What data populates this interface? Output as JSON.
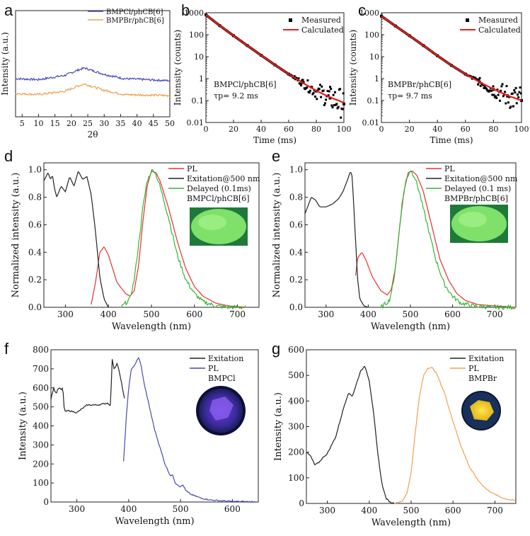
{
  "figure": {
    "panels": [
      {
        "id": "a",
        "label": "a"
      },
      {
        "id": "b",
        "label": "b"
      },
      {
        "id": "c",
        "label": "c"
      },
      {
        "id": "d",
        "label": "d"
      },
      {
        "id": "e",
        "label": "e"
      },
      {
        "id": "f",
        "label": "f"
      },
      {
        "id": "g",
        "label": "g"
      }
    ]
  },
  "chart_data": [
    {
      "id": "a",
      "type": "line",
      "xlabel": "2θ",
      "ylabel": "Intensity (a.u.)",
      "xlim": [
        3,
        50
      ],
      "ylim": [
        0,
        1
      ],
      "xticks": [
        5,
        10,
        15,
        20,
        25,
        30,
        35,
        40,
        45,
        50
      ],
      "yticks": [],
      "legend": "top-right",
      "series": [
        {
          "name": "BMPCl/phCB[6]",
          "color": "#4a4ab4",
          "x": [
            3,
            10,
            18,
            22,
            24,
            26,
            30,
            36,
            50
          ],
          "y": [
            0.36,
            0.35,
            0.39,
            0.44,
            0.46,
            0.44,
            0.4,
            0.36,
            0.34
          ]
        },
        {
          "name": "BMPBr/phCB[6]",
          "color": "#f0a050",
          "x": [
            3,
            10,
            18,
            22,
            24,
            26,
            30,
            36,
            50
          ],
          "y": [
            0.22,
            0.21,
            0.24,
            0.29,
            0.31,
            0.29,
            0.25,
            0.21,
            0.2
          ]
        }
      ]
    },
    {
      "id": "b",
      "type": "scatter",
      "xlabel": "Time (ms)",
      "ylabel": "Intensity (counts)",
      "xlim": [
        0,
        100
      ],
      "ylim": [
        0.01,
        1000
      ],
      "yscale": "log",
      "xticks": [
        0,
        20,
        40,
        60,
        80,
        100
      ],
      "yticks": [
        "0.01",
        "0.1",
        "1",
        "10",
        "100",
        "1000"
      ],
      "legend": "top-right",
      "annotations": [
        "BMPCl/phCB[6]",
        "τp= 9.2 ms"
      ],
      "series": [
        {
          "name": "Measured",
          "color": "#000000",
          "x": [
            0,
            10,
            20,
            30,
            40,
            50,
            60,
            70,
            80,
            90,
            100
          ],
          "y": [
            800,
            260,
            90,
            32,
            11.5,
            4.2,
            1.6,
            0.65,
            0.27,
            0.13,
            0.07
          ]
        },
        {
          "name": "Calculated",
          "color": "#e81c1c",
          "x": [
            0,
            10,
            20,
            30,
            40,
            50,
            60,
            70,
            80,
            90,
            100
          ],
          "y": [
            800,
            260,
            90,
            32,
            11.5,
            4.2,
            1.6,
            0.65,
            0.28,
            0.14,
            0.08
          ]
        }
      ]
    },
    {
      "id": "c",
      "type": "scatter",
      "xlabel": "Time (ms)",
      "ylabel": "Intensity (counts)",
      "xlim": [
        0,
        100
      ],
      "ylim": [
        0.01,
        1000
      ],
      "yscale": "log",
      "xticks": [
        0,
        20,
        40,
        60,
        80,
        100
      ],
      "yticks": [
        "0.01",
        "0.1",
        "1",
        "10",
        "100",
        "1000"
      ],
      "legend": "top-right",
      "annotations": [
        "BMPBr/phCB[6]",
        "τp= 9.7 ms"
      ],
      "series": [
        {
          "name": "Measured",
          "color": "#000000",
          "x": [
            0,
            10,
            20,
            30,
            40,
            50,
            60,
            70,
            80,
            90,
            100
          ],
          "y": [
            700,
            250,
            90,
            32,
            11,
            4,
            1.6,
            0.7,
            0.32,
            0.16,
            0.1
          ]
        },
        {
          "name": "Calculated",
          "color": "#e81c1c",
          "x": [
            0,
            10,
            20,
            30,
            40,
            50,
            60,
            70,
            80,
            90,
            100
          ],
          "y": [
            700,
            250,
            90,
            32,
            11,
            4,
            1.6,
            0.7,
            0.33,
            0.17,
            0.1
          ]
        }
      ]
    },
    {
      "id": "d",
      "type": "line",
      "xlabel": "Wavelength (nm)",
      "ylabel": "Normalized intensity (a.u.)",
      "xlim": [
        250,
        750
      ],
      "ylim": [
        0,
        1.05
      ],
      "xticks": [
        300,
        400,
        500,
        600,
        700
      ],
      "yticks": [
        "0.0",
        "0.2",
        "0.4",
        "0.6",
        "0.8",
        "1.0"
      ],
      "legend": "top-right",
      "annotations": [
        "BMPCl/phCB[6]"
      ],
      "series": [
        {
          "name": "PL",
          "color": "#e83030",
          "x": [
            360,
            370,
            380,
            390,
            400,
            420,
            440,
            450,
            460,
            470,
            480,
            490,
            500,
            510,
            520,
            540,
            560,
            580,
            600,
            620,
            650,
            680,
            720
          ],
          "y": [
            0.02,
            0.18,
            0.4,
            0.44,
            0.38,
            0.18,
            0.1,
            0.08,
            0.12,
            0.3,
            0.62,
            0.88,
            0.99,
            0.98,
            0.92,
            0.72,
            0.48,
            0.28,
            0.15,
            0.08,
            0.03,
            0.01,
            0.0
          ]
        },
        {
          "name": "Exitation@500 nm",
          "color": "#222222",
          "x": [
            250,
            260,
            265,
            270,
            275,
            280,
            290,
            300,
            310,
            320,
            330,
            340,
            350,
            360,
            370,
            380,
            390,
            400
          ],
          "y": [
            0.92,
            0.98,
            0.93,
            0.96,
            0.86,
            0.8,
            0.88,
            0.84,
            0.95,
            0.88,
            0.99,
            0.93,
            0.95,
            0.82,
            0.55,
            0.22,
            0.06,
            0.0
          ]
        },
        {
          "name": "Delayed (0.1ms)",
          "color": "#33b533",
          "x": [
            430,
            450,
            460,
            470,
            480,
            490,
            500,
            505,
            510,
            520,
            540,
            560,
            580,
            600,
            620,
            650,
            680,
            720
          ],
          "y": [
            0.0,
            0.06,
            0.2,
            0.45,
            0.72,
            0.92,
            0.99,
            1.0,
            0.97,
            0.88,
            0.65,
            0.38,
            0.2,
            0.1,
            0.04,
            0.01,
            0.0,
            0.0
          ]
        }
      ]
    },
    {
      "id": "e",
      "type": "line",
      "xlabel": "Wavelength (nm)",
      "ylabel": "Normalized intensity (a.u.)",
      "xlim": [
        250,
        750
      ],
      "ylim": [
        0,
        1.05
      ],
      "xticks": [
        300,
        400,
        500,
        600,
        700
      ],
      "yticks": [
        "0.0",
        "0.2",
        "0.4",
        "0.6",
        "0.8",
        "1.0"
      ],
      "legend": "top-right",
      "annotations": [
        "BMPBr/phCB[6]"
      ],
      "series": [
        {
          "name": "PL",
          "color": "#e83030",
          "x": [
            370,
            375,
            385,
            395,
            410,
            430,
            445,
            455,
            465,
            475,
            485,
            495,
            505,
            515,
            530,
            550,
            570,
            590,
            610,
            630,
            660,
            700,
            750
          ],
          "y": [
            0.23,
            0.36,
            0.4,
            0.34,
            0.22,
            0.12,
            0.09,
            0.13,
            0.3,
            0.6,
            0.85,
            0.98,
            0.99,
            0.96,
            0.85,
            0.6,
            0.35,
            0.2,
            0.1,
            0.05,
            0.02,
            0.01,
            0.0
          ]
        },
        {
          "name": "Exitation@500 nm",
          "color": "#222222",
          "x": [
            250,
            255,
            265,
            275,
            285,
            300,
            315,
            330,
            340,
            350,
            358,
            362,
            368,
            375,
            380,
            390,
            400
          ],
          "y": [
            0.68,
            0.72,
            0.8,
            0.78,
            0.73,
            0.73,
            0.75,
            0.79,
            0.84,
            0.92,
            0.99,
            0.95,
            0.6,
            0.2,
            0.06,
            0.01,
            0.0
          ]
        },
        {
          "name": "Delayed (0.1 ms)",
          "color": "#33b533",
          "x": [
            430,
            450,
            460,
            470,
            480,
            490,
            500,
            510,
            520,
            540,
            560,
            580,
            600,
            620,
            650,
            700,
            750
          ],
          "y": [
            0.0,
            0.05,
            0.18,
            0.45,
            0.75,
            0.93,
            1.0,
            0.95,
            0.85,
            0.6,
            0.35,
            0.17,
            0.08,
            0.03,
            0.01,
            0.0,
            0.0
          ]
        }
      ]
    },
    {
      "id": "f",
      "type": "line",
      "xlabel": "Wavelength (nm)",
      "ylabel": "Intensity (a.u.)",
      "xlim": [
        250,
        650
      ],
      "ylim": [
        0,
        800
      ],
      "xticks": [
        300,
        400,
        500,
        600
      ],
      "yticks": [
        "0",
        "100",
        "200",
        "300",
        "400",
        "500",
        "600",
        "700",
        "800"
      ],
      "legend": "top-right",
      "annotations": [
        "BMPCl"
      ],
      "series": [
        {
          "name": "Exitation",
          "color": "#222222",
          "x": [
            250,
            255,
            260,
            265,
            270,
            273,
            276,
            285,
            300,
            320,
            340,
            360,
            365,
            368,
            372,
            378,
            382,
            388,
            392
          ],
          "y": [
            540,
            600,
            570,
            600,
            590,
            600,
            475,
            480,
            470,
            510,
            510,
            520,
            505,
            750,
            700,
            730,
            680,
            600,
            540
          ]
        },
        {
          "name": "PL",
          "color": "#4a4ab4",
          "x": [
            390,
            395,
            400,
            405,
            410,
            415,
            420,
            425,
            430,
            440,
            450,
            460,
            470,
            480,
            485,
            490,
            500,
            505,
            510,
            520,
            540,
            560,
            600,
            650
          ],
          "y": [
            210,
            430,
            600,
            700,
            710,
            740,
            760,
            700,
            620,
            500,
            380,
            290,
            200,
            140,
            140,
            100,
            80,
            90,
            60,
            40,
            20,
            10,
            3,
            1
          ]
        }
      ]
    },
    {
      "id": "g",
      "type": "line",
      "xlabel": "Wavelength (nm)",
      "ylabel": "Intensity (a.u.)",
      "xlim": [
        250,
        750
      ],
      "ylim": [
        0,
        600
      ],
      "xticks": [
        300,
        400,
        500,
        600,
        700
      ],
      "yticks": [
        "0",
        "100",
        "200",
        "300",
        "400",
        "500",
        "600"
      ],
      "legend": "top-right",
      "annotations": [
        "BMPBr"
      ],
      "series": [
        {
          "name": "Exitation",
          "color": "#222222",
          "x": [
            250,
            260,
            270,
            280,
            290,
            300,
            320,
            340,
            350,
            360,
            370,
            380,
            390,
            400,
            410,
            420,
            430,
            440,
            450,
            460
          ],
          "y": [
            200,
            185,
            150,
            160,
            180,
            195,
            260,
            380,
            430,
            420,
            470,
            520,
            535,
            480,
            360,
            200,
            80,
            20,
            5,
            0
          ]
        },
        {
          "name": "PL",
          "color": "#f0a050",
          "x": [
            460,
            480,
            490,
            500,
            510,
            520,
            530,
            540,
            550,
            560,
            580,
            600,
            620,
            640,
            660,
            680,
            700,
            720,
            750
          ],
          "y": [
            0,
            10,
            40,
            120,
            280,
            420,
            500,
            530,
            530,
            510,
            430,
            320,
            220,
            140,
            90,
            55,
            35,
            20,
            10
          ]
        }
      ]
    }
  ]
}
